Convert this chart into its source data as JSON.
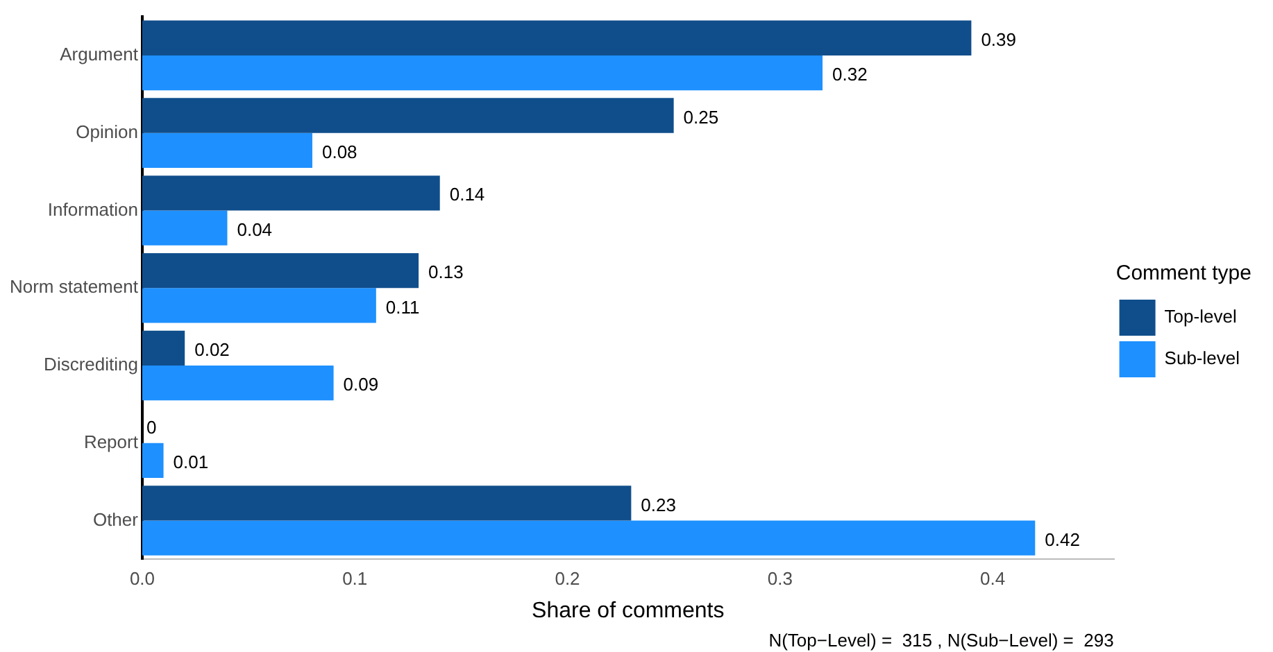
{
  "chart_data": {
    "type": "bar",
    "orientation": "horizontal",
    "xlabel": "Share of comments",
    "legend_title": "Comment type",
    "legend": "right",
    "grid": false,
    "data_labels": true,
    "categories": [
      "Argument",
      "Opinion",
      "Information",
      "Norm statement",
      "Discrediting",
      "Report",
      "Other"
    ],
    "series": [
      {
        "name": "Top-level",
        "color": "#104e8b",
        "values": [
          0.39,
          0.25,
          0.14,
          0.13,
          0.02,
          0,
          0.23
        ]
      },
      {
        "name": "Sub-level",
        "color": "#1e90ff",
        "values": [
          0.32,
          0.08,
          0.04,
          0.11,
          0.09,
          0.01,
          0.42
        ]
      }
    ],
    "xlim": [
      0,
      0.457
    ],
    "xticks": [
      {
        "value": 0,
        "label": "0.0"
      },
      0.1,
      0.2,
      0.3,
      0.4
    ],
    "annotations": [
      "N(Top−Level) =  315 , N(Sub−Level) =  293"
    ]
  }
}
